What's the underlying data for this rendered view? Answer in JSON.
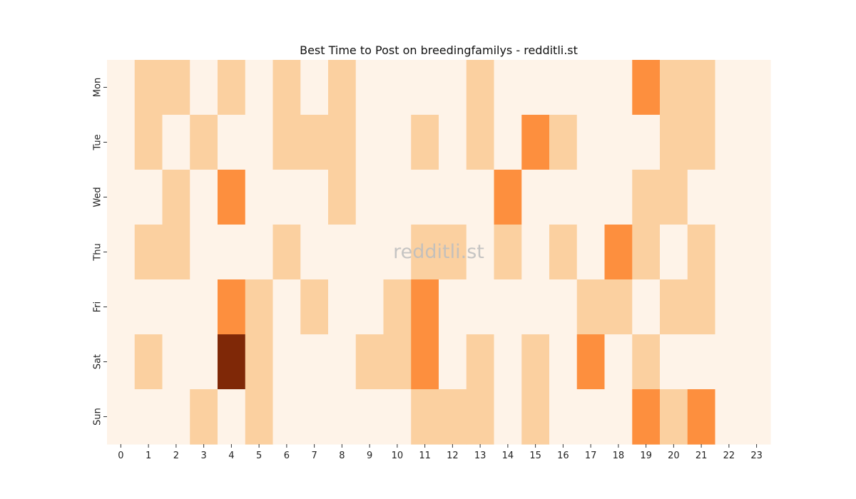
{
  "chart_data": {
    "type": "heatmap",
    "title": "Best Time to Post on breedingfamilys - redditli.st",
    "watermark": "redditli.st",
    "x_categories": [
      "0",
      "1",
      "2",
      "3",
      "4",
      "5",
      "6",
      "7",
      "8",
      "9",
      "10",
      "11",
      "12",
      "13",
      "14",
      "15",
      "16",
      "17",
      "18",
      "19",
      "20",
      "21",
      "22",
      "23"
    ],
    "y_categories": [
      "Mon",
      "Tue",
      "Wed",
      "Thu",
      "Fri",
      "Sat",
      "Sun"
    ],
    "values": [
      [
        0,
        1,
        1,
        0,
        1,
        0,
        1,
        0,
        1,
        0,
        0,
        0,
        0,
        1,
        0,
        0,
        0,
        0,
        0,
        2,
        1,
        1,
        0,
        0
      ],
      [
        0,
        1,
        0,
        1,
        0,
        0,
        1,
        1,
        1,
        0,
        0,
        1,
        0,
        1,
        0,
        2,
        1,
        0,
        0,
        0,
        1,
        1,
        0,
        0
      ],
      [
        0,
        0,
        1,
        0,
        2,
        0,
        0,
        0,
        1,
        0,
        0,
        0,
        0,
        0,
        2,
        0,
        0,
        0,
        0,
        1,
        1,
        0,
        0,
        0
      ],
      [
        0,
        1,
        1,
        0,
        0,
        0,
        1,
        0,
        0,
        0,
        0,
        1,
        1,
        0,
        1,
        0,
        1,
        0,
        2,
        1,
        0,
        1,
        0,
        0
      ],
      [
        0,
        0,
        0,
        0,
        2,
        1,
        0,
        1,
        0,
        0,
        1,
        2,
        0,
        0,
        0,
        0,
        0,
        1,
        1,
        0,
        1,
        1,
        0,
        0
      ],
      [
        0,
        1,
        0,
        0,
        4,
        1,
        0,
        0,
        0,
        1,
        1,
        2,
        0,
        1,
        0,
        1,
        0,
        2,
        0,
        1,
        0,
        0,
        0,
        0
      ],
      [
        0,
        0,
        0,
        1,
        0,
        1,
        0,
        0,
        0,
        0,
        0,
        1,
        1,
        1,
        0,
        1,
        0,
        0,
        0,
        2,
        1,
        2,
        0,
        0
      ]
    ],
    "colormap": {
      "0": "#fef3e8",
      "1": "#fbd0a0",
      "2": "#fd8f3e",
      "4": "#7f2807"
    },
    "xlabel": "",
    "ylabel": ""
  }
}
